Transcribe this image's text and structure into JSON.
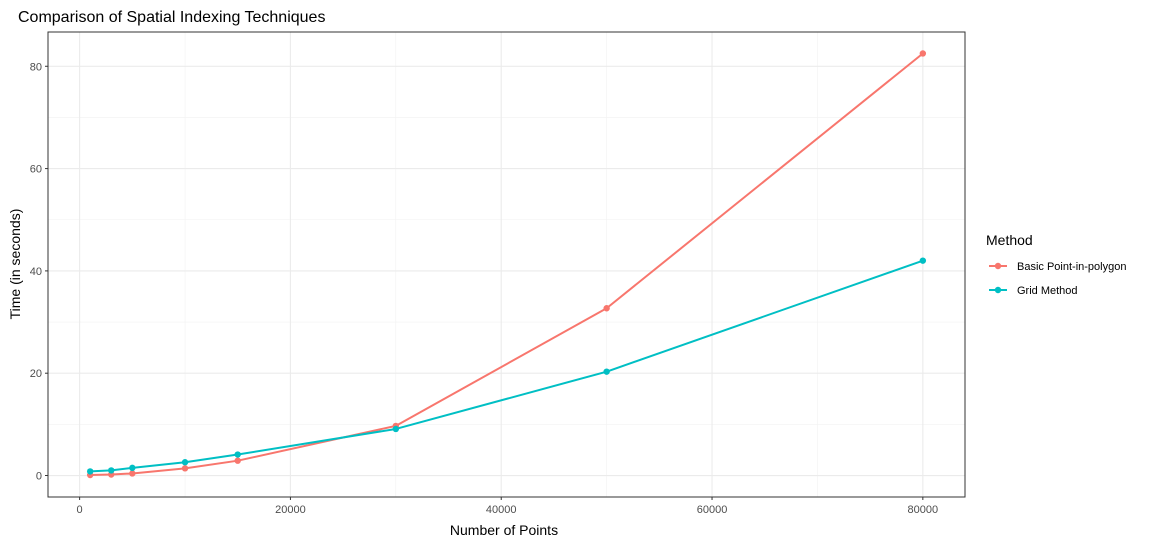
{
  "chart_data": {
    "type": "line",
    "title": "Comparison of Spatial Indexing Techniques",
    "xlabel": "Number of Points",
    "ylabel": "Time (in seconds)",
    "xlim": [
      -3000,
      84000
    ],
    "ylim": [
      -4.2,
      86.7
    ],
    "xticks": [
      0,
      20000,
      40000,
      60000,
      80000
    ],
    "xtick_labels": [
      "0",
      "20000",
      "40000",
      "60000",
      "80000"
    ],
    "yticks": [
      0,
      20,
      40,
      60,
      80
    ],
    "ytick_labels": [
      "0",
      "20",
      "40",
      "60",
      "80"
    ],
    "grid": true,
    "legend": {
      "title": "Method",
      "position": "right"
    },
    "series": [
      {
        "name": "Basic Point-in-polygon",
        "color": "#F8766D",
        "x": [
          1000,
          3000,
          5000,
          10000,
          15000,
          30000,
          50000,
          80000
        ],
        "y": [
          0.1,
          0.2,
          0.4,
          1.4,
          2.9,
          9.7,
          32.7,
          82.5
        ]
      },
      {
        "name": "Grid Method",
        "color": "#00BFC4",
        "x": [
          1000,
          3000,
          5000,
          10000,
          15000,
          30000,
          50000,
          80000
        ],
        "y": [
          0.8,
          1.0,
          1.5,
          2.6,
          4.1,
          9.1,
          20.3,
          42.0
        ]
      }
    ]
  }
}
